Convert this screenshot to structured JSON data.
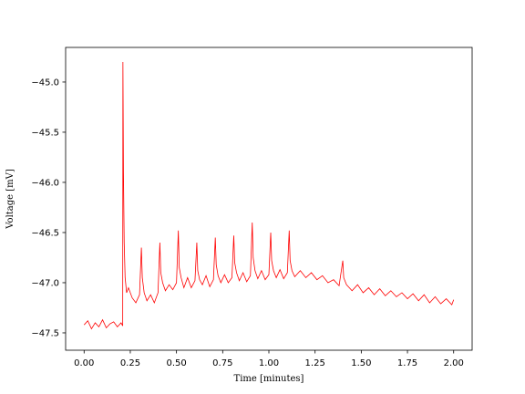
{
  "chart_data": {
    "type": "line",
    "xlabel": "Time [minutes]",
    "ylabel": "Voltage [mV]",
    "color": "#ff0000",
    "xlim": [
      -0.1,
      2.1
    ],
    "ylim": [
      -47.673,
      -44.655
    ],
    "xticks": [
      {
        "value": 0,
        "label": "0.00"
      },
      0.25,
      {
        "value": 0.5,
        "label": "0.50"
      },
      0.75,
      {
        "value": 1,
        "label": "1.00"
      },
      1.25,
      {
        "value": 1.5,
        "label": "1.50"
      },
      1.75,
      {
        "value": 2,
        "label": "2.00"
      }
    ],
    "yticks": [
      {
        "value": -47.5,
        "label": "−47.5"
      },
      {
        "value": -47,
        "label": "−47.0"
      },
      {
        "value": -46.5,
        "label": "−46.5"
      },
      {
        "value": -46,
        "label": "−46.0"
      },
      {
        "value": -45.5,
        "label": "−45.5"
      },
      {
        "value": -45,
        "label": "−45.0"
      }
    ],
    "x": [
      0,
      0.02,
      0.04,
      0.06,
      0.08,
      0.1,
      0.12,
      0.14,
      0.16,
      0.18,
      0.2,
      0.209,
      0.21,
      0.213,
      0.217,
      0.222,
      0.23,
      0.24,
      0.26,
      0.28,
      0.3,
      0.31,
      0.315,
      0.325,
      0.34,
      0.36,
      0.38,
      0.4,
      0.41,
      0.415,
      0.425,
      0.44,
      0.46,
      0.48,
      0.5,
      0.51,
      0.515,
      0.525,
      0.54,
      0.56,
      0.58,
      0.6,
      0.61,
      0.615,
      0.625,
      0.64,
      0.66,
      0.68,
      0.7,
      0.71,
      0.715,
      0.725,
      0.74,
      0.76,
      0.78,
      0.8,
      0.81,
      0.815,
      0.825,
      0.84,
      0.86,
      0.88,
      0.9,
      0.91,
      0.915,
      0.925,
      0.94,
      0.96,
      0.98,
      1.0,
      1.01,
      1.015,
      1.025,
      1.04,
      1.06,
      1.08,
      1.1,
      1.11,
      1.115,
      1.125,
      1.14,
      1.17,
      1.2,
      1.23,
      1.26,
      1.29,
      1.32,
      1.35,
      1.38,
      1.4,
      1.405,
      1.42,
      1.45,
      1.48,
      1.51,
      1.54,
      1.57,
      1.6,
      1.63,
      1.66,
      1.69,
      1.72,
      1.75,
      1.78,
      1.81,
      1.84,
      1.87,
      1.9,
      1.93,
      1.96,
      1.99,
      2.0
    ],
    "values": [
      -47.42,
      -47.38,
      -47.46,
      -47.4,
      -47.44,
      -47.37,
      -47.45,
      -47.41,
      -47.39,
      -47.44,
      -47.4,
      -47.43,
      -44.8,
      -45.9,
      -46.6,
      -46.95,
      -47.1,
      -47.05,
      -47.15,
      -47.2,
      -47.12,
      -46.65,
      -46.95,
      -47.1,
      -47.18,
      -47.12,
      -47.2,
      -47.1,
      -46.6,
      -46.9,
      -47.0,
      -47.08,
      -47.02,
      -47.07,
      -47.0,
      -46.48,
      -46.85,
      -46.95,
      -47.05,
      -46.95,
      -47.05,
      -46.98,
      -46.6,
      -46.88,
      -46.97,
      -47.02,
      -46.93,
      -47.04,
      -46.97,
      -46.55,
      -46.82,
      -46.93,
      -47.0,
      -46.92,
      -47.0,
      -46.95,
      -46.53,
      -46.8,
      -46.9,
      -46.98,
      -46.9,
      -46.99,
      -46.93,
      -46.4,
      -46.75,
      -46.88,
      -46.96,
      -46.88,
      -46.97,
      -46.92,
      -46.5,
      -46.78,
      -46.88,
      -46.95,
      -46.87,
      -46.96,
      -46.9,
      -46.48,
      -46.78,
      -46.88,
      -46.94,
      -46.88,
      -46.95,
      -46.9,
      -46.97,
      -46.93,
      -47.0,
      -46.97,
      -47.03,
      -46.78,
      -46.95,
      -47.02,
      -47.08,
      -47.02,
      -47.1,
      -47.05,
      -47.12,
      -47.06,
      -47.13,
      -47.08,
      -47.14,
      -47.1,
      -47.16,
      -47.11,
      -47.18,
      -47.12,
      -47.2,
      -47.14,
      -47.21,
      -47.16,
      -47.22,
      -47.17
    ]
  }
}
